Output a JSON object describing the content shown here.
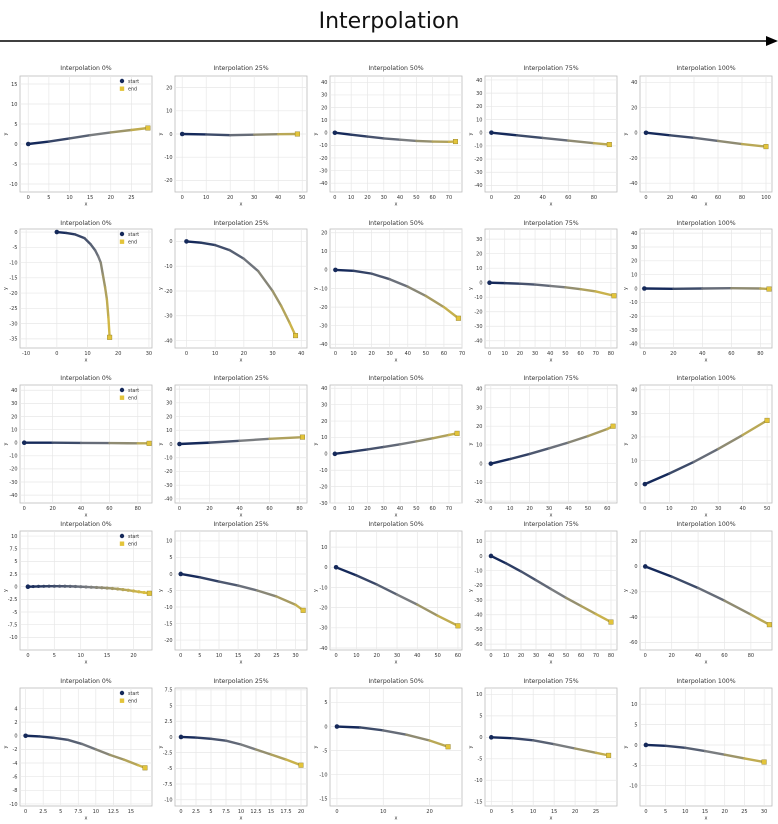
{
  "header": {
    "title": "Interpolation"
  },
  "legend": {
    "start": "start",
    "end": "end"
  },
  "colors": {
    "start": "#15295a",
    "mid": "#7a7d80",
    "end": "#e3c43a",
    "grid": "#e7e7e7",
    "axis": "#bdbdbd",
    "text": "#333333"
  },
  "axis_labels": {
    "x": "x",
    "y": "y"
  },
  "chart_data": [
    {
      "type": "line",
      "row": 0,
      "title": "Interpolation 0%",
      "legend": true,
      "xlim": [
        -2,
        30
      ],
      "ylim": [
        -12,
        17
      ],
      "xticks": [
        0,
        5,
        10,
        15,
        20,
        25
      ],
      "yticks": [
        -10,
        -5,
        0,
        5,
        10,
        15
      ],
      "x": [
        0,
        5,
        10,
        15,
        20,
        25,
        29
      ],
      "y": [
        0,
        0.6,
        1.4,
        2.2,
        2.9,
        3.5,
        4
      ]
    },
    {
      "type": "line",
      "row": 0,
      "title": "Interpolation 25%",
      "legend": false,
      "xlim": [
        -3,
        52
      ],
      "ylim": [
        -25,
        25
      ],
      "xticks": [
        0,
        10,
        20,
        30,
        40,
        50
      ],
      "yticks": [
        -20,
        -10,
        0,
        10,
        20
      ],
      "x": [
        0,
        10,
        20,
        30,
        40,
        48
      ],
      "y": [
        0,
        -0.2,
        -0.5,
        -0.3,
        -0.1,
        0
      ]
    },
    {
      "type": "line",
      "row": 0,
      "title": "Interpolation 50%",
      "legend": false,
      "xlim": [
        -3,
        78
      ],
      "ylim": [
        -47,
        45
      ],
      "xticks": [
        0,
        10,
        20,
        30,
        40,
        50,
        60,
        70
      ],
      "yticks": [
        -40,
        -30,
        -20,
        -10,
        0,
        10,
        20,
        30,
        40
      ],
      "x": [
        0,
        10,
        20,
        30,
        40,
        50,
        60,
        70,
        74
      ],
      "y": [
        0,
        -1.5,
        -3,
        -4.5,
        -5.5,
        -6.5,
        -7,
        -7.2,
        -7
      ]
    },
    {
      "type": "line",
      "row": 0,
      "title": "Interpolation 75%",
      "legend": false,
      "xlim": [
        -5,
        98
      ],
      "ylim": [
        -45,
        43
      ],
      "xticks": [
        0,
        20,
        40,
        60,
        80
      ],
      "yticks": [
        -40,
        -30,
        -20,
        -10,
        0,
        10,
        20,
        30,
        40
      ],
      "x": [
        0,
        20,
        40,
        60,
        80,
        92
      ],
      "y": [
        0,
        -2,
        -4,
        -6,
        -8,
        -9
      ]
    },
    {
      "type": "line",
      "row": 0,
      "title": "Interpolation 100%",
      "legend": false,
      "xlim": [
        -5,
        105
      ],
      "ylim": [
        -47,
        45
      ],
      "xticks": [
        0,
        20,
        40,
        60,
        80,
        100
      ],
      "yticks": [
        -40,
        -20,
        0,
        20,
        40
      ],
      "x": [
        0,
        20,
        40,
        60,
        80,
        100
      ],
      "y": [
        0,
        -2,
        -4,
        -6.5,
        -9,
        -11
      ]
    },
    {
      "type": "line",
      "row": 1,
      "title": "Interpolation 0%",
      "legend": true,
      "xlim": [
        -12,
        31
      ],
      "ylim": [
        -38,
        1
      ],
      "xticks": [
        -10,
        0,
        10,
        20,
        30
      ],
      "yticks": [
        0,
        -5,
        -10,
        -15,
        -20,
        -25,
        -30,
        -35
      ],
      "x": [
        0,
        3,
        6,
        9,
        11,
        12.5,
        13.5,
        14.3,
        15,
        15.7,
        16.3,
        16.8,
        17.2
      ],
      "y": [
        0,
        -0.3,
        -0.8,
        -2,
        -4,
        -6,
        -8,
        -10,
        -14,
        -18,
        -22,
        -28,
        -34.5
      ]
    },
    {
      "type": "line",
      "row": 1,
      "title": "Interpolation 25%",
      "legend": false,
      "xlim": [
        -4,
        42
      ],
      "ylim": [
        -43,
        5
      ],
      "xticks": [
        0,
        10,
        20,
        30,
        40
      ],
      "yticks": [
        0,
        -10,
        -20,
        -30,
        -40
      ],
      "x": [
        0,
        5,
        10,
        15,
        20,
        25,
        30,
        33,
        36,
        38
      ],
      "y": [
        0,
        -0.5,
        -1.5,
        -3.5,
        -7,
        -12,
        -20,
        -26,
        -33,
        -38
      ]
    },
    {
      "type": "line",
      "row": 1,
      "title": "Interpolation 50%",
      "legend": false,
      "xlim": [
        -3,
        70
      ],
      "ylim": [
        -42,
        22
      ],
      "xticks": [
        0,
        10,
        20,
        30,
        40,
        50,
        60,
        70
      ],
      "yticks": [
        -40,
        -30,
        -20,
        -10,
        0,
        10,
        20
      ],
      "x": [
        0,
        10,
        20,
        30,
        40,
        50,
        60,
        68
      ],
      "y": [
        0,
        -0.5,
        -2,
        -5,
        -9,
        -14,
        -20,
        -26
      ]
    },
    {
      "type": "line",
      "row": 1,
      "title": "Interpolation 75%",
      "legend": false,
      "xlim": [
        -3,
        84
      ],
      "ylim": [
        -45,
        37
      ],
      "xticks": [
        0,
        10,
        20,
        30,
        40,
        50,
        60,
        70,
        80
      ],
      "yticks": [
        -40,
        -30,
        -20,
        -10,
        0,
        10,
        20,
        30
      ],
      "x": [
        0,
        10,
        20,
        30,
        40,
        50,
        60,
        70,
        82
      ],
      "y": [
        0,
        -0.3,
        -0.7,
        -1.3,
        -2.2,
        -3.2,
        -4.5,
        -6,
        -9
      ]
    },
    {
      "type": "line",
      "row": 1,
      "title": "Interpolation 100%",
      "legend": false,
      "xlim": [
        -3,
        88
      ],
      "ylim": [
        -43,
        43
      ],
      "xticks": [
        0,
        20,
        40,
        60,
        80
      ],
      "yticks": [
        -40,
        -30,
        -20,
        -10,
        0,
        10,
        20,
        30,
        40
      ],
      "x": [
        0,
        20,
        40,
        60,
        80,
        86
      ],
      "y": [
        0,
        -0.2,
        0,
        0.2,
        0,
        -0.4
      ]
    },
    {
      "type": "line",
      "row": 2,
      "title": "Interpolation 0%",
      "legend": true,
      "xlim": [
        -3,
        90
      ],
      "ylim": [
        -46,
        44
      ],
      "xticks": [
        0,
        20,
        40,
        60,
        80
      ],
      "yticks": [
        -40,
        -30,
        -20,
        -10,
        0,
        10,
        20,
        30,
        40
      ],
      "x": [
        0,
        20,
        40,
        60,
        80,
        88
      ],
      "y": [
        0,
        0,
        -0.2,
        -0.3,
        -0.5,
        -0.5
      ]
    },
    {
      "type": "line",
      "row": 2,
      "title": "Interpolation 25%",
      "legend": false,
      "xlim": [
        -3,
        85
      ],
      "ylim": [
        -43,
        43
      ],
      "xticks": [
        0,
        20,
        40,
        60,
        80
      ],
      "yticks": [
        -40,
        -30,
        -20,
        -10,
        0,
        10,
        20,
        30,
        40
      ],
      "x": [
        0,
        20,
        40,
        60,
        82
      ],
      "y": [
        0,
        1,
        2.3,
        3.8,
        5
      ]
    },
    {
      "type": "line",
      "row": 2,
      "title": "Interpolation 50%",
      "legend": false,
      "xlim": [
        -3,
        78
      ],
      "ylim": [
        -30,
        42
      ],
      "xticks": [
        0,
        10,
        20,
        30,
        40,
        50,
        60,
        70
      ],
      "yticks": [
        -30,
        -20,
        -10,
        0,
        10,
        20,
        30,
        40
      ],
      "x": [
        0,
        10,
        20,
        30,
        40,
        50,
        60,
        70,
        75
      ],
      "y": [
        0,
        1.3,
        2.7,
        4.2,
        5.8,
        7.6,
        9.5,
        11.5,
        12.5
      ]
    },
    {
      "type": "line",
      "row": 2,
      "title": "Interpolation 75%",
      "legend": false,
      "xlim": [
        -3,
        65
      ],
      "ylim": [
        -21,
        42
      ],
      "xticks": [
        0,
        10,
        20,
        30,
        40,
        50,
        60
      ],
      "yticks": [
        -20,
        -10,
        0,
        10,
        20,
        30,
        40
      ],
      "x": [
        0,
        10,
        20,
        30,
        40,
        50,
        60,
        63
      ],
      "y": [
        0,
        2.5,
        5.2,
        8.2,
        11.3,
        14.7,
        18.5,
        20
      ]
    },
    {
      "type": "line",
      "row": 2,
      "title": "Interpolation 100%",
      "legend": false,
      "xlim": [
        -2,
        52
      ],
      "ylim": [
        -8,
        42
      ],
      "xticks": [
        0,
        10,
        20,
        30,
        40,
        50
      ],
      "yticks": [
        0,
        10,
        20,
        30,
        40
      ],
      "x": [
        0,
        10,
        20,
        30,
        40,
        50
      ],
      "y": [
        0,
        4.5,
        9.4,
        14.9,
        20.8,
        27
      ]
    },
    {
      "type": "line",
      "row": 3,
      "title": "Interpolation 0%",
      "legend": true,
      "xlim": [
        -1.5,
        23.5
      ],
      "ylim": [
        -12.5,
        11
      ],
      "xticks": [
        0,
        5,
        10,
        15,
        20
      ],
      "yticks": [
        10,
        7.5,
        5,
        2.5,
        0,
        -2.5,
        -5,
        -7.5,
        -10
      ],
      "x": [
        0,
        1,
        2,
        3,
        4,
        5,
        6,
        7,
        8,
        9,
        10,
        11,
        12,
        13,
        14,
        15,
        16,
        17,
        18,
        19,
        20,
        21,
        22,
        23
      ],
      "y": [
        0,
        0.03,
        0.06,
        0.08,
        0.1,
        0.1,
        0.1,
        0.09,
        0.07,
        0.04,
        0,
        -0.05,
        -0.1,
        -0.15,
        -0.2,
        -0.27,
        -0.35,
        -0.45,
        -0.57,
        -0.7,
        -0.85,
        -1,
        -1.15,
        -1.3
      ],
      "markers": true
    },
    {
      "type": "line",
      "row": 3,
      "title": "Interpolation 25%",
      "legend": false,
      "xlim": [
        -1.5,
        33
      ],
      "ylim": [
        -23,
        13
      ],
      "xticks": [
        0,
        5,
        10,
        15,
        20,
        25,
        30
      ],
      "yticks": [
        10,
        5,
        0,
        -5,
        -10,
        -15,
        -20
      ],
      "x": [
        0,
        5,
        10,
        15,
        20,
        25,
        30,
        32
      ],
      "y": [
        0,
        -1,
        -2.3,
        -3.5,
        -5,
        -6.8,
        -9.3,
        -11
      ]
    },
    {
      "type": "line",
      "row": 3,
      "title": "Interpolation 50%",
      "legend": false,
      "xlim": [
        -3,
        62
      ],
      "ylim": [
        -41,
        18
      ],
      "xticks": [
        0,
        10,
        20,
        30,
        40,
        50,
        60
      ],
      "yticks": [
        10,
        0,
        -10,
        -20,
        -30,
        -40
      ],
      "x": [
        0,
        10,
        20,
        30,
        40,
        50,
        60
      ],
      "y": [
        0,
        -4,
        -8.5,
        -13.5,
        -18.5,
        -24,
        -29
      ]
    },
    {
      "type": "line",
      "row": 3,
      "title": "Interpolation 75%",
      "legend": false,
      "xlim": [
        -4,
        84
      ],
      "ylim": [
        -64,
        17
      ],
      "xticks": [
        0,
        10,
        20,
        30,
        40,
        50,
        60,
        70,
        80
      ],
      "yticks": [
        10,
        0,
        -10,
        -20,
        -30,
        -40,
        -50,
        -60
      ],
      "x": [
        0,
        10,
        20,
        30,
        40,
        50,
        60,
        70,
        80
      ],
      "y": [
        0,
        -5,
        -10.5,
        -16.5,
        -22.5,
        -28.5,
        -34,
        -39.5,
        -45
      ]
    },
    {
      "type": "line",
      "row": 3,
      "title": "Interpolation 100%",
      "legend": false,
      "xlim": [
        -4,
        96
      ],
      "ylim": [
        -66,
        28
      ],
      "xticks": [
        0,
        20,
        40,
        60,
        80
      ],
      "yticks": [
        20,
        0,
        -20,
        -40,
        -60
      ],
      "x": [
        0,
        20,
        40,
        60,
        80,
        94
      ],
      "y": [
        0,
        -8,
        -17,
        -27,
        -38,
        -46
      ]
    },
    {
      "type": "line",
      "row": 4,
      "title": "Interpolation 0%",
      "legend": true,
      "xlim": [
        -0.8,
        18
      ],
      "ylim": [
        -10.3,
        7
      ],
      "xticks": [
        0,
        2.5,
        5,
        7.5,
        10,
        12.5,
        15
      ],
      "yticks": [
        4,
        2,
        0,
        -2,
        -4,
        -6,
        -8,
        -10
      ],
      "x": [
        0,
        2,
        4,
        6,
        8,
        10,
        12,
        14,
        16,
        17
      ],
      "y": [
        0,
        -0.1,
        -0.3,
        -0.6,
        -1.2,
        -2,
        -2.8,
        -3.5,
        -4.3,
        -4.7
      ]
    },
    {
      "type": "line",
      "row": 4,
      "title": "Interpolation 25%",
      "legend": false,
      "xlim": [
        -1,
        21
      ],
      "ylim": [
        -11,
        7.8
      ],
      "xticks": [
        0,
        2.5,
        5,
        7.5,
        10,
        12.5,
        15,
        17.5,
        20
      ],
      "yticks": [
        7.5,
        5,
        2.5,
        0,
        -2.5,
        -5,
        -7.5,
        -10
      ],
      "x": [
        0,
        2.5,
        5,
        7.5,
        10,
        12.5,
        15,
        17.5,
        20
      ],
      "y": [
        0,
        -0.1,
        -0.3,
        -0.6,
        -1.2,
        -2,
        -2.8,
        -3.6,
        -4.5
      ]
    },
    {
      "type": "line",
      "row": 4,
      "title": "Interpolation 50%",
      "legend": false,
      "xlim": [
        -1.5,
        27
      ],
      "ylim": [
        -16.5,
        8
      ],
      "xticks": [
        0,
        10,
        20
      ],
      "yticks": [
        5,
        0,
        -5,
        -10,
        -15
      ],
      "x": [
        0,
        5,
        10,
        15,
        20,
        24
      ],
      "y": [
        0,
        -0.2,
        -0.8,
        -1.7,
        -2.9,
        -4.2
      ]
    },
    {
      "type": "line",
      "row": 4,
      "title": "Interpolation 75%",
      "legend": false,
      "xlim": [
        -1.5,
        30
      ],
      "ylim": [
        -16,
        11.5
      ],
      "xticks": [
        0,
        5,
        10,
        15,
        20,
        25
      ],
      "yticks": [
        10,
        5,
        0,
        -5,
        -10,
        -15
      ],
      "x": [
        0,
        5,
        10,
        15,
        20,
        25,
        28
      ],
      "y": [
        0,
        -0.2,
        -0.7,
        -1.6,
        -2.6,
        -3.6,
        -4.2
      ]
    },
    {
      "type": "line",
      "row": 4,
      "title": "Interpolation 100%",
      "legend": false,
      "xlim": [
        -1.5,
        32
      ],
      "ylim": [
        -15,
        14
      ],
      "xticks": [
        0,
        5,
        10,
        15,
        20,
        25,
        30
      ],
      "yticks": [
        10,
        5,
        0,
        -5,
        -10
      ],
      "x": [
        0,
        5,
        10,
        15,
        20,
        25,
        30
      ],
      "y": [
        0,
        -0.2,
        -0.7,
        -1.5,
        -2.4,
        -3.3,
        -4.2
      ]
    }
  ]
}
